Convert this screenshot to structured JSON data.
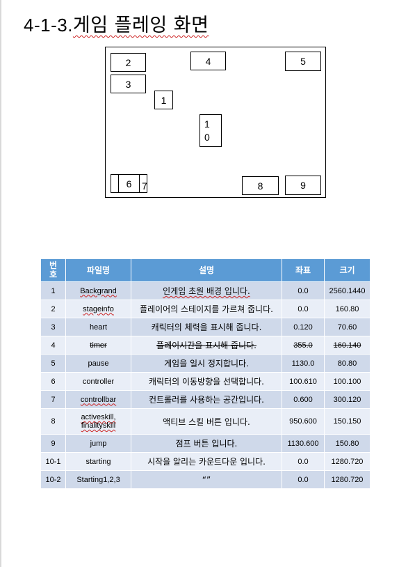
{
  "title": {
    "number": "4-1-3.",
    "text": "게임 플레잉 화면"
  },
  "diagram": {
    "boxes": {
      "b1": "1",
      "b2": "2",
      "b3": "3",
      "b4": "4",
      "b5": "5",
      "b6": "6",
      "b7": "7",
      "b8": "8",
      "b9": "9",
      "b10a": "1",
      "b10b": "0"
    }
  },
  "table": {
    "headers": [
      "번\n호",
      "파일명",
      "설명",
      "좌표",
      "크기"
    ],
    "rows": [
      {
        "no": "1",
        "file": "Backgrand",
        "desc": "인게임 초원 배경 입니다.",
        "coord": "0.0",
        "size": "2560.1440"
      },
      {
        "no": "2",
        "file": "stageinfo",
        "desc": "플레이어의 스테이지를 가르쳐 줍니다.",
        "coord": "0.0",
        "size": "160.80"
      },
      {
        "no": "3",
        "file": "heart",
        "desc": "캐릭터의 체력을 표시해 줍니다.",
        "coord": "0.120",
        "size": "70.60"
      },
      {
        "no": "4",
        "file": "timer",
        "desc": "플레이시간을 표시해 줍니다.",
        "coord": "355.0",
        "size": "160.140"
      },
      {
        "no": "5",
        "file": "pause",
        "desc": "게임을 일시 정지합니다.",
        "coord": "1130.0",
        "size": "80.80"
      },
      {
        "no": "6",
        "file": "controller",
        "desc": "캐릭터의 이동방향을 선택합니다.",
        "coord": "100.610",
        "size": "100.100"
      },
      {
        "no": "7",
        "file": "controllbar",
        "desc": "컨트롤러를 사용하는 공간입니다.",
        "coord": "0.600",
        "size": "300.120"
      },
      {
        "no": "8",
        "file": "activeskill,\nfinalityskill",
        "desc": "액티브 스킬 버튼 입니다.",
        "coord": "950.600",
        "size": "150.150"
      },
      {
        "no": "9",
        "file": "jump",
        "desc": "점프 버튼 입니다.",
        "coord": "1130.600",
        "size": "150.80"
      },
      {
        "no": "10-1",
        "file": "starting",
        "desc": "시작을 알리는 카운트다운 입니다.",
        "coord": "0.0",
        "size": "1280.720"
      },
      {
        "no": "10-2",
        "file": "Starting1,2,3",
        "desc": "“”",
        "coord": "0.0",
        "size": "1280.720"
      }
    ]
  },
  "colors": {
    "header": "#5b9bd5",
    "row_odd": "#cfd9ea",
    "row_even": "#e9eef7"
  }
}
